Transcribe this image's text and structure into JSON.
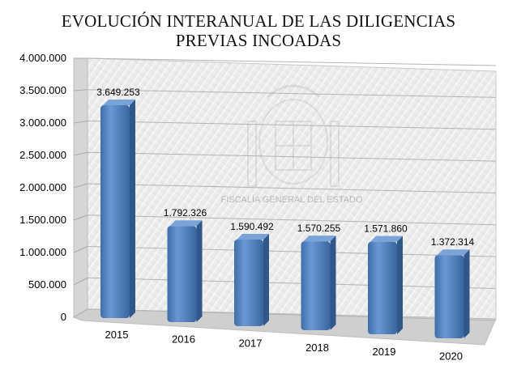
{
  "chart_data": {
    "type": "bar",
    "title_lines": [
      "EVOLUCIÓN INTERANUAL DE LAS DILIGENCIAS",
      "PREVIAS INCOADAS"
    ],
    "categories": [
      "2015",
      "2016",
      "2017",
      "2018",
      "2019",
      "2020"
    ],
    "values": [
      3649253,
      1792326,
      1590492,
      1570255,
      1571860,
      1372314
    ],
    "value_labels": [
      "3.649.253",
      "1.792.326",
      "1.590.492",
      "1.570.255",
      "1.571.860",
      "1.372.314"
    ],
    "y_ticks": [
      0,
      500000,
      1000000,
      1500000,
      2000000,
      2500000,
      3000000,
      3500000,
      4000000
    ],
    "y_tick_labels": [
      "0",
      "500.000",
      "1.000.000",
      "1.500.000",
      "2.000.000",
      "2.500.000",
      "3.000.000",
      "3.500.000",
      "4.000.000"
    ],
    "ylim": [
      0,
      4000000
    ],
    "grid": true,
    "legend": "none",
    "bar_color": "#4F81BD",
    "watermark": "FISCALÍA GENERAL DEL ESTADO"
  }
}
